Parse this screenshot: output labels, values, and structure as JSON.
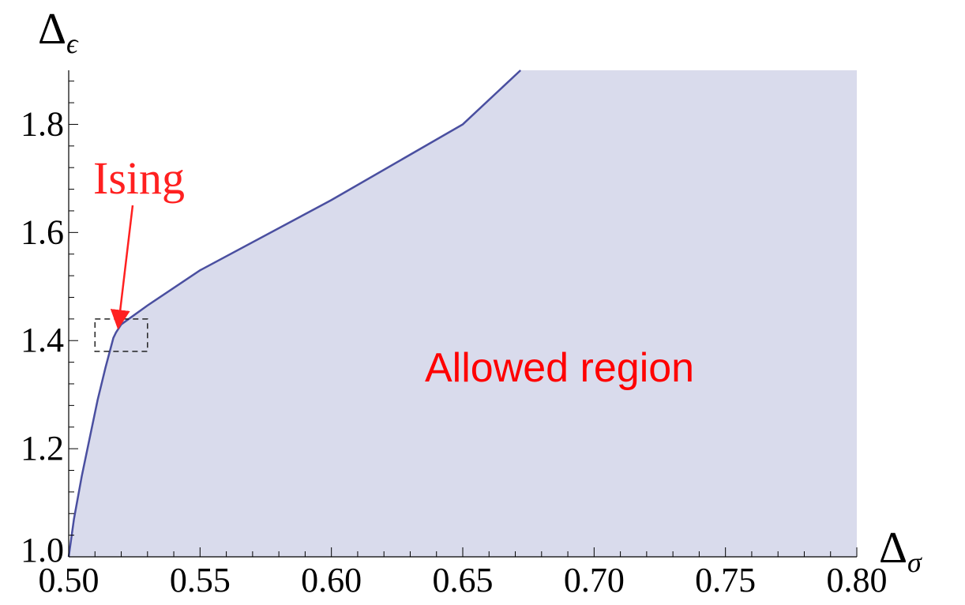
{
  "chart_data": {
    "type": "area",
    "xlabel": "Δ",
    "xlabel_sub": "σ",
    "ylabel": "Δ",
    "ylabel_sub": "ϵ",
    "xlim": [
      0.5,
      0.8
    ],
    "ylim": [
      1.0,
      1.9
    ],
    "x_ticks": [
      0.5,
      0.55,
      0.6,
      0.65,
      0.7,
      0.75,
      0.8
    ],
    "x_tick_labels": [
      "0.50",
      "0.55",
      "0.60",
      "0.65",
      "0.70",
      "0.75",
      "0.80"
    ],
    "y_ticks": [
      1.0,
      1.2,
      1.4,
      1.6,
      1.8
    ],
    "y_tick_labels": [
      "1.0",
      "1.2",
      "1.4",
      "1.6",
      "1.8"
    ],
    "grid": false,
    "series": [
      {
        "x": [
          0.5,
          0.502,
          0.505,
          0.508,
          0.511,
          0.514,
          0.517,
          0.518,
          0.52,
          0.53,
          0.55,
          0.6,
          0.65,
          0.672
        ],
        "y": [
          1.0,
          1.07,
          1.15,
          1.22,
          1.29,
          1.35,
          1.405,
          1.415,
          1.43,
          1.465,
          1.53,
          1.66,
          1.8,
          1.9
        ]
      }
    ],
    "fill_color": "#d9dbec",
    "line_color": "#4a4fa0",
    "annotations": [
      {
        "text": "Ising",
        "color": "#ff2020",
        "arrow_to": [
          0.518,
          1.413
        ]
      },
      {
        "text": "Allowed region",
        "color": "#ff0000"
      }
    ],
    "highlight_box": {
      "x": [
        0.51,
        0.53
      ],
      "y": [
        1.38,
        1.44
      ]
    }
  }
}
